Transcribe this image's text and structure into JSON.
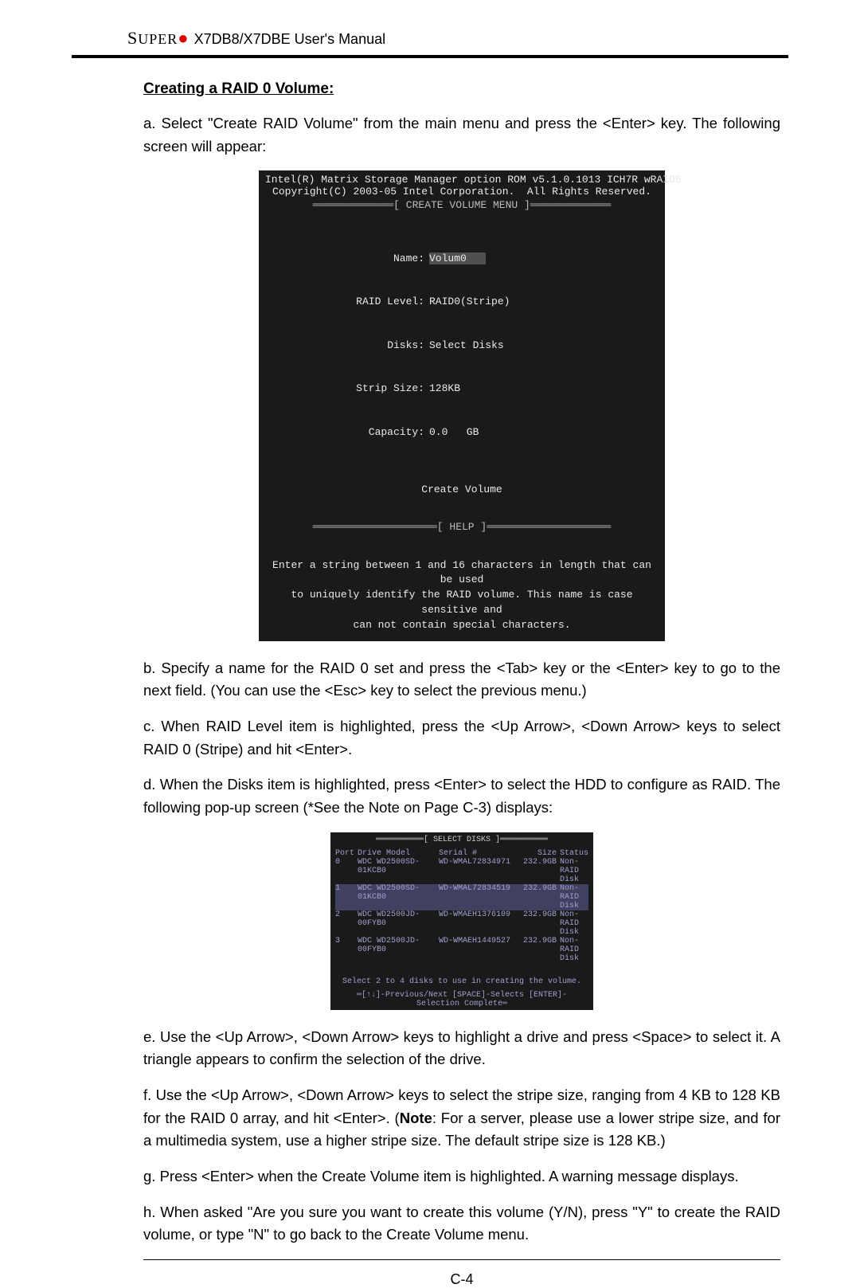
{
  "header": {
    "logo_text": "UPER",
    "title": "X7DB8/X7DBE User's Manual"
  },
  "section_title": "Creating a RAID 0 Volume:",
  "para_a": "a. Select \"Create RAID Volume\" from the main menu and press the <Enter> key. The following screen will appear:",
  "terminal1": {
    "line1": "Intel(R) Matrix Storage Manager option ROM v5.1.0.1013 ICH7R wRAID5",
    "line2": "Copyright(C) 2003-05 Intel Corporation.  All Rights Reserved.",
    "divider1": "═════════════[ CREATE VOLUME MENU ]═════════════",
    "name_label": "Name:",
    "name_value": "Volum0",
    "raid_label": "RAID Level:",
    "raid_value": "RAID0(Stripe)",
    "disks_label": "Disks:",
    "disks_value": "Select Disks",
    "strip_label": "Strip Size:",
    "strip_value": "128KB",
    "cap_label": "Capacity:",
    "cap_value": "0.0   GB",
    "create_volume": "Create Volume",
    "divider2": "════════════════════[ HELP ]════════════════════",
    "help1": "Enter a string between 1 and 16 characters in length that can be used",
    "help2": "to uniquely identify the RAID volume. This name is case sensitive and",
    "help3": "can not contain special characters."
  },
  "para_b": "b. Specify a name for the RAID 0 set and press the <Tab> key or the <Enter> key to go to the next field. (You can use the <Esc> key to select the previous menu.)",
  "para_c": "c. When RAID Level item is highlighted, press the <Up Arrow>, <Down Arrow> keys to select RAID 0 (Stripe) and hit <Enter>.",
  "para_d": "d. When the Disks item is highlighted, press <Enter> to select the HDD to configure as RAID.  The following pop-up screen (*See the Note on Page C-3) displays:",
  "terminal2": {
    "divider": "══════════[ SELECT DISKS ]══════════",
    "hdr_port": "Port",
    "hdr_model": "Drive Model",
    "hdr_serial": "Serial #",
    "hdr_size": "Size",
    "hdr_status": "Status",
    "rows": [
      {
        "port": "0",
        "model": "WDC WD2500SD-01KCB0",
        "serial": "WD-WMAL72834971",
        "size": "232.9GB",
        "status": "Non-RAID Disk",
        "sel": false
      },
      {
        "port": "1",
        "model": "WDC WD2500SD-01KCB0",
        "serial": "WD-WMAL72834519",
        "size": "232.9GB",
        "status": "Non-RAID Disk",
        "sel": true
      },
      {
        "port": "2",
        "model": "WDC WD2500JD-00FYB0",
        "serial": "WD-WMAEH1376109",
        "size": "232.9GB",
        "status": "Non-RAID Disk",
        "sel": false
      },
      {
        "port": "3",
        "model": "WDC WD2500JD-00FYB0",
        "serial": "WD-WMAEH1449527",
        "size": "232.9GB",
        "status": "Non-RAID Disk",
        "sel": false
      }
    ],
    "hint": "Select 2 to 4 disks to use in creating the volume.",
    "footer": "═[↑↓]-Previous/Next  [SPACE]-Selects  [ENTER]-Selection Complete═"
  },
  "para_e": "e. Use  the <Up Arrow>, <Down Arrow> keys to highlight a drive and press <Space> to select it. A triangle appears to confirm the selection of the drive.",
  "para_f_1": "f. Use  the <Up Arrow>, <Down Arrow> keys to select the stripe size, ranging from 4 KB to 128 KB for the RAID 0 array, and hit <Enter>. (",
  "para_f_note": "Note",
  "para_f_2": ": For a server, please use a lower stripe size, and for a multimedia system, use a higher stripe size. The default stripe size is 128 KB.)",
  "para_g": "g. Press <Enter> when the Create Volume item is highlighted. A warning message displays.",
  "para_h": "h. When asked \"Are you sure you want to create this volume (Y/N), press \"Y\" to create the RAID volume, or type \"N\" to go back to the Create Volume menu.",
  "page_number": "C-4"
}
